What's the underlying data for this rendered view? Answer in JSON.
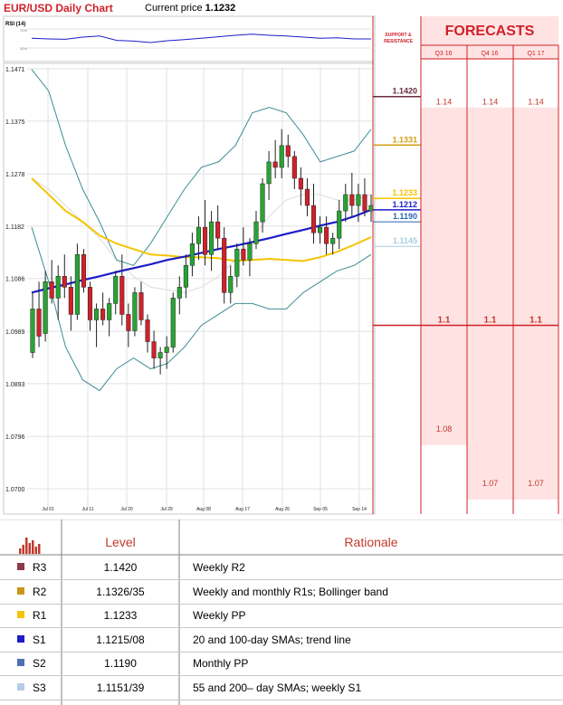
{
  "header": {
    "title": "EUR/USD Daily Chart",
    "current_price_label": "Current price",
    "current_price_value": "1.1232"
  },
  "rsi": {
    "label": "RSI (14)",
    "ticks": [
      "70%",
      "30%"
    ]
  },
  "sr_panel": {
    "heading": "SUPPORT & RESISTANCE"
  },
  "forecasts": {
    "title": "FORECASTS",
    "quarters": [
      "Q3 16",
      "Q4 16",
      "Q1 17"
    ]
  },
  "chart_data": {
    "type": "candlestick",
    "title": "EUR/USD Daily Chart",
    "x_ticks": [
      "Jul 01",
      "Jul 11",
      "Jul 20",
      "Jul 29",
      "Aug 08",
      "Aug 17",
      "Aug 26",
      "Sep 05",
      "Sep 14"
    ],
    "y_ticks": [
      "1.1471",
      "1.1375",
      "1.1278",
      "1.1182",
      "1.1086",
      "1.0989",
      "1.0893",
      "1.0796",
      "1.0700"
    ],
    "ylim": [
      1.07,
      1.1471
    ],
    "grid": true,
    "levels": [
      {
        "name": "R3",
        "value": "1.1420",
        "color": "#6b2d3e"
      },
      {
        "name": "R2",
        "value": "1.1331",
        "color": "#d4a017"
      },
      {
        "name": "R1",
        "value": "1.1233",
        "color": "#f5c400"
      },
      {
        "name": "S1",
        "value": "1.1212",
        "color": "#1c1cc9"
      },
      {
        "name": "S2",
        "value": "1.1190",
        "color": "#2b65b5"
      },
      {
        "name": "S3",
        "value": "1.1145",
        "color": "#a9cde0"
      }
    ],
    "forecast_values": {
      "Q3 16": [
        "1.14",
        "1.1",
        "1.08"
      ],
      "Q4 16": [
        "1.14",
        "1.1",
        "1.07"
      ],
      "Q1 17": [
        "1.14",
        "1.1",
        "1.07"
      ]
    },
    "candles": [
      [
        1.095,
        1.106,
        1.094,
        1.103
      ],
      [
        1.103,
        1.108,
        1.096,
        1.098
      ],
      [
        1.0985,
        1.11,
        1.097,
        1.108
      ],
      [
        1.108,
        1.112,
        1.104,
        1.105
      ],
      [
        1.105,
        1.111,
        1.101,
        1.109
      ],
      [
        1.109,
        1.113,
        1.105,
        1.107
      ],
      [
        1.107,
        1.109,
        1.099,
        1.102
      ],
      [
        1.102,
        1.115,
        1.101,
        1.113
      ],
      [
        1.113,
        1.114,
        1.106,
        1.107
      ],
      [
        1.107,
        1.108,
        1.099,
        1.101
      ],
      [
        1.101,
        1.104,
        1.096,
        1.103
      ],
      [
        1.103,
        1.106,
        1.1,
        1.101
      ],
      [
        1.101,
        1.105,
        1.098,
        1.104
      ],
      [
        1.104,
        1.11,
        1.102,
        1.109
      ],
      [
        1.109,
        1.113,
        1.1,
        1.102
      ],
      [
        1.102,
        1.104,
        1.096,
        1.099
      ],
      [
        1.099,
        1.107,
        1.098,
        1.106
      ],
      [
        1.106,
        1.108,
        1.1,
        1.101
      ],
      [
        1.101,
        1.102,
        1.095,
        1.097
      ],
      [
        1.097,
        1.099,
        1.092,
        1.094
      ],
      [
        1.094,
        1.096,
        1.091,
        1.095
      ],
      [
        1.095,
        1.098,
        1.092,
        1.096
      ],
      [
        1.096,
        1.106,
        1.095,
        1.105
      ],
      [
        1.105,
        1.109,
        1.102,
        1.107
      ],
      [
        1.107,
        1.113,
        1.105,
        1.111
      ],
      [
        1.111,
        1.117,
        1.109,
        1.115
      ],
      [
        1.115,
        1.12,
        1.112,
        1.118
      ],
      [
        1.118,
        1.123,
        1.111,
        1.113
      ],
      [
        1.113,
        1.121,
        1.11,
        1.119
      ],
      [
        1.119,
        1.122,
        1.114,
        1.116
      ],
      [
        1.116,
        1.118,
        1.104,
        1.106
      ],
      [
        1.106,
        1.111,
        1.104,
        1.109
      ],
      [
        1.109,
        1.115,
        1.107,
        1.114
      ],
      [
        1.114,
        1.118,
        1.111,
        1.112
      ],
      [
        1.112,
        1.116,
        1.109,
        1.115
      ],
      [
        1.115,
        1.121,
        1.114,
        1.119
      ],
      [
        1.119,
        1.127,
        1.117,
        1.126
      ],
      [
        1.126,
        1.132,
        1.123,
        1.13
      ],
      [
        1.13,
        1.134,
        1.127,
        1.129
      ],
      [
        1.129,
        1.136,
        1.127,
        1.133
      ],
      [
        1.133,
        1.135,
        1.129,
        1.131
      ],
      [
        1.131,
        1.132,
        1.125,
        1.127
      ],
      [
        1.127,
        1.129,
        1.122,
        1.125
      ],
      [
        1.125,
        1.127,
        1.12,
        1.122
      ],
      [
        1.122,
        1.126,
        1.115,
        1.117
      ],
      [
        1.117,
        1.12,
        1.115,
        1.118
      ],
      [
        1.118,
        1.12,
        1.113,
        1.115
      ],
      [
        1.115,
        1.117,
        1.113,
        1.116
      ],
      [
        1.116,
        1.123,
        1.114,
        1.121
      ],
      [
        1.121,
        1.126,
        1.119,
        1.124
      ],
      [
        1.124,
        1.128,
        1.12,
        1.122
      ],
      [
        1.122,
        1.126,
        1.119,
        1.124
      ],
      [
        1.124,
        1.127,
        1.12,
        1.121
      ],
      [
        1.121,
        1.124,
        1.119,
        1.122
      ]
    ],
    "sma_blue": [
      1.106,
      1.1068,
      1.1075,
      1.1083,
      1.109,
      1.1098,
      1.1105,
      1.1112,
      1.112,
      1.1126,
      1.1133,
      1.114,
      1.1146,
      1.1153,
      1.116,
      1.1168,
      1.1175,
      1.1183,
      1.119,
      1.12,
      1.1212
    ],
    "sma_yellow": [
      1.127,
      1.124,
      1.121,
      1.119,
      1.1165,
      1.115,
      1.114,
      1.113,
      1.1128,
      1.1125,
      1.1125,
      1.1123,
      1.1118,
      1.112,
      1.1122,
      1.112,
      1.1118,
      1.1125,
      1.1135,
      1.1148,
      1.1162
    ],
    "bb_upper": [
      1.147,
      1.143,
      1.133,
      1.125,
      1.119,
      1.112,
      1.111,
      1.115,
      1.12,
      1.125,
      1.129,
      1.13,
      1.133,
      1.139,
      1.14,
      1.139,
      1.135,
      1.13,
      1.131,
      1.132,
      1.136
    ],
    "bb_lower": [
      1.118,
      1.108,
      1.096,
      1.09,
      1.088,
      1.092,
      1.094,
      1.092,
      1.093,
      1.096,
      1.1,
      1.102,
      1.104,
      1.104,
      1.103,
      1.103,
      1.106,
      1.108,
      1.11,
      1.111,
      1.113
    ],
    "sma_gray": [
      1.127,
      1.125,
      1.122,
      1.119,
      1.116,
      1.112,
      1.109,
      1.107,
      1.1065,
      1.106,
      1.107,
      1.109,
      1.112,
      1.116,
      1.12,
      1.123,
      1.124,
      1.124,
      1.123,
      1.123,
      1.124
    ],
    "rsi_values": [
      52,
      50,
      49,
      55,
      58,
      46,
      44,
      40,
      45,
      48,
      52,
      56,
      60,
      63,
      60,
      58,
      55,
      52,
      53,
      50,
      50
    ]
  },
  "table": {
    "header_level": "Level",
    "header_rationale": "Rationale",
    "rows": [
      {
        "label": "R3",
        "level": "1.1420",
        "rationale": "Weekly R2",
        "color": "#8b3a4a"
      },
      {
        "label": "R2",
        "level": "1.1326/35",
        "rationale": "Weekly and monthly R1s; Bollinger band",
        "color": "#c9961a"
      },
      {
        "label": "R1",
        "level": "1.1233",
        "rationale": "Weekly PP",
        "color": "#f5c400"
      },
      {
        "label": "S1",
        "level": "1.1215/08",
        "rationale": "20 and 100-day SMAs; trend line",
        "color": "#1c1cc9"
      },
      {
        "label": "S2",
        "level": "1.1190",
        "rationale": "Monthly PP",
        "color": "#4f6fb5"
      },
      {
        "label": "S3",
        "level": "1.1151/39",
        "rationale": "55 and 200– day SMAs; weekly S1",
        "color": "#b3cde8"
      }
    ]
  }
}
